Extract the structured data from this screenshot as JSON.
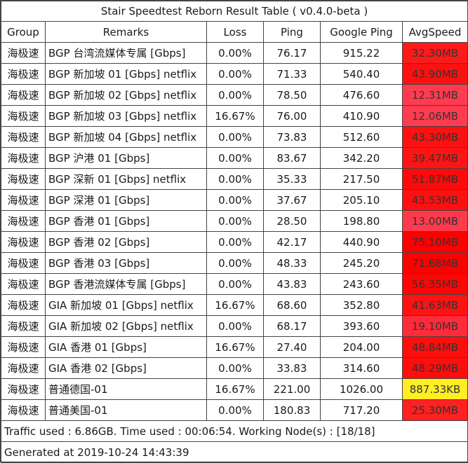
{
  "title": "Stair Speedtest Reborn Result Table ( v0.4.0-beta )",
  "headers": [
    "Group",
    "Remarks",
    "Loss",
    "Ping",
    "Google Ping",
    "AvgSpeed"
  ],
  "rows": [
    {
      "group": "海极速",
      "remarks": "BGP 台湾流媒体专属  [Gbps]",
      "loss": "0.00%",
      "ping": "76.17",
      "gping": "915.22",
      "speed": "32.30MB",
      "color": "#ff1a1a"
    },
    {
      "group": "海极速",
      "remarks": "BGP 新加坡 01 [Gbps] netflix",
      "loss": "0.00%",
      "ping": "71.33",
      "gping": "540.40",
      "speed": "43.90MB",
      "color": "#ff1010"
    },
    {
      "group": "海极速",
      "remarks": "BGP 新加坡 02 [Gbps] netflix",
      "loss": "0.00%",
      "ping": "78.50",
      "gping": "476.60",
      "speed": "12.31MB",
      "color": "#ff3c4f"
    },
    {
      "group": "海极速",
      "remarks": "BGP 新加坡 03 [Gbps] netflix",
      "loss": "16.67%",
      "ping": "76.00",
      "gping": "410.90",
      "speed": "12.06MB",
      "color": "#ff3c4f"
    },
    {
      "group": "海极速",
      "remarks": "BGP 新加坡 04 [Gbps] netflix",
      "loss": "0.00%",
      "ping": "73.83",
      "gping": "512.60",
      "speed": "43.30MB",
      "color": "#ff1010"
    },
    {
      "group": "海极速",
      "remarks": "BGP 沪港 01 [Gbps]",
      "loss": "0.00%",
      "ping": "83.67",
      "gping": "342.20",
      "speed": "39.47MB",
      "color": "#ff1414"
    },
    {
      "group": "海极速",
      "remarks": "BGP 深新 01 [Gbps] netflix",
      "loss": "0.00%",
      "ping": "35.33",
      "gping": "217.50",
      "speed": "51.87MB",
      "color": "#ff0a0a"
    },
    {
      "group": "海极速",
      "remarks": "BGP 深港 01 [Gbps]",
      "loss": "0.00%",
      "ping": "37.67",
      "gping": "205.10",
      "speed": "43.53MB",
      "color": "#ff1010"
    },
    {
      "group": "海极速",
      "remarks": "BGP 香港 01 [Gbps]",
      "loss": "0.00%",
      "ping": "28.50",
      "gping": "198.80",
      "speed": "13.00MB",
      "color": "#ff3a4c"
    },
    {
      "group": "海极速",
      "remarks": "BGP 香港 02  [Gbps]",
      "loss": "0.00%",
      "ping": "42.17",
      "gping": "440.90",
      "speed": "75.10MB",
      "color": "#ff0000"
    },
    {
      "group": "海极速",
      "remarks": "BGP 香港 03  [Gbps]",
      "loss": "0.00%",
      "ping": "48.33",
      "gping": "245.20",
      "speed": "71.68MB",
      "color": "#ff0000"
    },
    {
      "group": "海极速",
      "remarks": "BGP 香港流媒体专属 [Gbps]",
      "loss": "0.00%",
      "ping": "43.83",
      "gping": "243.60",
      "speed": "56.35MB",
      "color": "#ff0505"
    },
    {
      "group": "海极速",
      "remarks": "GIA 新加坡 01 [Gbps] netflix",
      "loss": "16.67%",
      "ping": "68.60",
      "gping": "352.80",
      "speed": "41.63MB",
      "color": "#ff1212"
    },
    {
      "group": "海极速",
      "remarks": "GIA 新加坡 02 [Gbps] netflix",
      "loss": "0.00%",
      "ping": "68.17",
      "gping": "393.60",
      "speed": "19.10MB",
      "color": "#ff2a3a"
    },
    {
      "group": "海极速",
      "remarks": "GIA 香港 01 [Gbps]",
      "loss": "16.67%",
      "ping": "27.40",
      "gping": "204.00",
      "speed": "48.84MB",
      "color": "#ff0d0d"
    },
    {
      "group": "海极速",
      "remarks": "GIA 香港 02  [Gbps]",
      "loss": "0.00%",
      "ping": "33.83",
      "gping": "314.60",
      "speed": "48.29MB",
      "color": "#ff0d0d"
    },
    {
      "group": "海极速",
      "remarks": "普通德国-01",
      "loss": "16.67%",
      "ping": "221.00",
      "gping": "1026.00",
      "speed": "887.33KB",
      "color": "#ffee22"
    },
    {
      "group": "海极速",
      "remarks": "普通美国-01",
      "loss": "0.00%",
      "ping": "180.83",
      "gping": "717.20",
      "speed": "25.30MB",
      "color": "#ff2020"
    }
  ],
  "footer": {
    "traffic": "Traffic used : 6.86GB. Time used : 00:06:54. Working Node(s) : [18/18]",
    "generated": "Generated at 2019-10-24 14:43:39"
  }
}
